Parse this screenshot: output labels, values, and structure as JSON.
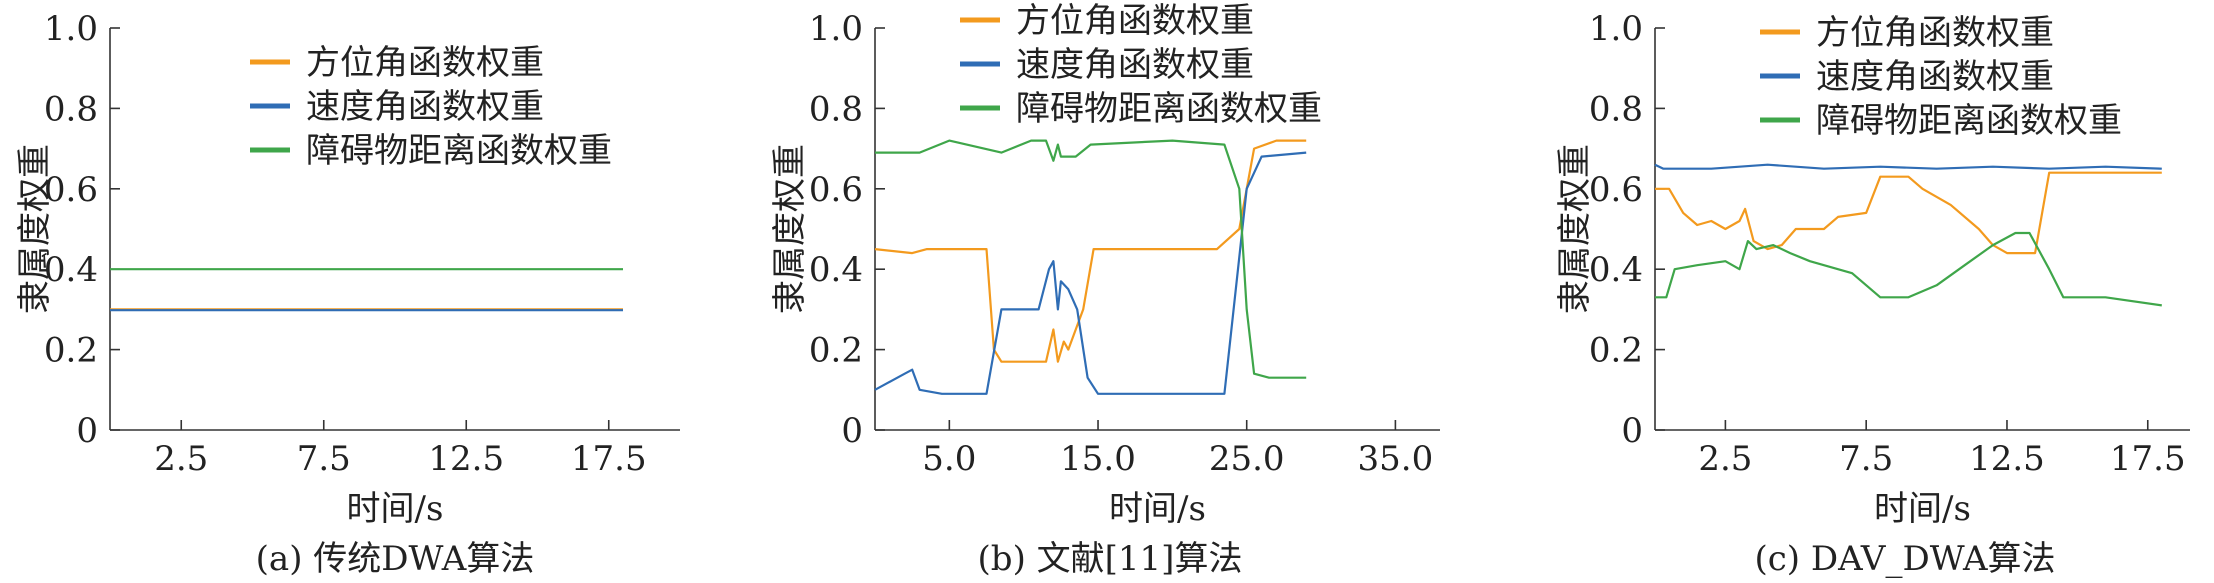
{
  "colors": {
    "orange": "#f39a1e",
    "blue": "#2f6db5",
    "green": "#3fa64a",
    "axis": "#333333"
  },
  "chart_data": [
    {
      "type": "line",
      "caption": "(a) 传统DWA算法",
      "xlabel": "时间/s",
      "ylabel": "隶属度权重",
      "xlim": [
        0,
        20
      ],
      "ylim": [
        0,
        1.0
      ],
      "xticks": [
        2.5,
        7.5,
        12.5,
        17.5
      ],
      "xtick_labels": [
        "2.5",
        "7.5",
        "12.5",
        "17.5"
      ],
      "yticks": [
        0,
        0.2,
        0.4,
        0.6,
        0.8,
        1.0
      ],
      "ytick_labels": [
        "0",
        "0.2",
        "0.4",
        "0.6",
        "0.8",
        "1.0"
      ],
      "legend_position": "top-center",
      "series": [
        {
          "name": "方位角函数权重",
          "color": "orange",
          "points": [
            [
              0,
              0.3
            ],
            [
              18,
              0.3
            ]
          ]
        },
        {
          "name": "速度角函数权重",
          "color": "blue",
          "points": [
            [
              0,
              0.298
            ],
            [
              18,
              0.298
            ]
          ]
        },
        {
          "name": "障碍物距离函数权重",
          "color": "green",
          "points": [
            [
              0,
              0.4
            ],
            [
              18,
              0.4
            ]
          ]
        }
      ]
    },
    {
      "type": "line",
      "caption": "(b) 文献[11]算法",
      "xlabel": "时间/s",
      "ylabel": "隶属度权重",
      "xlim": [
        0,
        38
      ],
      "ylim": [
        0,
        1.0
      ],
      "xticks": [
        5,
        15,
        25,
        35
      ],
      "xtick_labels": [
        "5.0",
        "15.0",
        "25.0",
        "35.0"
      ],
      "yticks": [
        0,
        0.2,
        0.4,
        0.6,
        0.8,
        1.0
      ],
      "ytick_labels": [
        "0",
        "0.2",
        "0.4",
        "0.6",
        "0.8",
        "1.0"
      ],
      "legend_position": "top-center",
      "series": [
        {
          "name": "方位角函数权重",
          "color": "orange",
          "points": [
            [
              0,
              0.45
            ],
            [
              2.5,
              0.44
            ],
            [
              3.5,
              0.45
            ],
            [
              7.5,
              0.45
            ],
            [
              8.0,
              0.2
            ],
            [
              8.5,
              0.17
            ],
            [
              11.5,
              0.17
            ],
            [
              12.0,
              0.25
            ],
            [
              12.3,
              0.17
            ],
            [
              12.7,
              0.22
            ],
            [
              13,
              0.2
            ],
            [
              14,
              0.3
            ],
            [
              14.7,
              0.45
            ],
            [
              23,
              0.45
            ],
            [
              24.5,
              0.5
            ],
            [
              25.5,
              0.7
            ],
            [
              27,
              0.72
            ],
            [
              29,
              0.72
            ]
          ]
        },
        {
          "name": "速度角函数权重",
          "color": "blue",
          "points": [
            [
              0,
              0.1
            ],
            [
              2,
              0.14
            ],
            [
              2.5,
              0.15
            ],
            [
              3,
              0.1
            ],
            [
              4.5,
              0.09
            ],
            [
              7.5,
              0.09
            ],
            [
              8.5,
              0.3
            ],
            [
              11,
              0.3
            ],
            [
              11.7,
              0.4
            ],
            [
              12,
              0.42
            ],
            [
              12.3,
              0.3
            ],
            [
              12.5,
              0.37
            ],
            [
              13,
              0.35
            ],
            [
              13.6,
              0.3
            ],
            [
              14.3,
              0.13
            ],
            [
              15,
              0.09
            ],
            [
              23.5,
              0.09
            ],
            [
              24.5,
              0.43
            ],
            [
              25,
              0.6
            ],
            [
              26,
              0.68
            ],
            [
              29,
              0.69
            ]
          ]
        },
        {
          "name": "障碍物距离函数权重",
          "color": "green",
          "points": [
            [
              0,
              0.69
            ],
            [
              3,
              0.69
            ],
            [
              5,
              0.72
            ],
            [
              8.5,
              0.69
            ],
            [
              10.5,
              0.72
            ],
            [
              11.5,
              0.72
            ],
            [
              12,
              0.67
            ],
            [
              12.3,
              0.71
            ],
            [
              12.5,
              0.68
            ],
            [
              13.5,
              0.68
            ],
            [
              14.5,
              0.71
            ],
            [
              20,
              0.72
            ],
            [
              23.5,
              0.71
            ],
            [
              24.5,
              0.6
            ],
            [
              25,
              0.3
            ],
            [
              25.5,
              0.14
            ],
            [
              26.5,
              0.13
            ],
            [
              29,
              0.13
            ]
          ]
        }
      ]
    },
    {
      "type": "line",
      "caption": "(c) DAV_DWA算法",
      "xlabel": "时间/s",
      "ylabel": "隶属度权重",
      "xlim": [
        0,
        19
      ],
      "ylim": [
        0,
        1.0
      ],
      "xticks": [
        2.5,
        7.5,
        12.5,
        17.5
      ],
      "xtick_labels": [
        "2.5",
        "7.5",
        "12.5",
        "17.5"
      ],
      "yticks": [
        0,
        0.2,
        0.4,
        0.6,
        0.8,
        1.0
      ],
      "ytick_labels": [
        "0",
        "0.2",
        "0.4",
        "0.6",
        "0.8",
        "1.0"
      ],
      "legend_position": "top-center",
      "series": [
        {
          "name": "方位角函数权重",
          "color": "orange",
          "points": [
            [
              0,
              0.6
            ],
            [
              0.5,
              0.6
            ],
            [
              1,
              0.54
            ],
            [
              1.5,
              0.51
            ],
            [
              2,
              0.52
            ],
            [
              2.5,
              0.5
            ],
            [
              3.0,
              0.52
            ],
            [
              3.2,
              0.55
            ],
            [
              3.5,
              0.47
            ],
            [
              4,
              0.45
            ],
            [
              4.5,
              0.46
            ],
            [
              5,
              0.5
            ],
            [
              6,
              0.5
            ],
            [
              6.5,
              0.53
            ],
            [
              7.5,
              0.54
            ],
            [
              8,
              0.63
            ],
            [
              9,
              0.63
            ],
            [
              9.5,
              0.6
            ],
            [
              10.5,
              0.56
            ],
            [
              11.5,
              0.5
            ],
            [
              12,
              0.46
            ],
            [
              12.5,
              0.44
            ],
            [
              13.5,
              0.44
            ],
            [
              14,
              0.64
            ],
            [
              18,
              0.64
            ]
          ]
        },
        {
          "name": "速度角函数权重",
          "color": "blue",
          "points": [
            [
              0,
              0.66
            ],
            [
              0.3,
              0.65
            ],
            [
              2,
              0.65
            ],
            [
              4,
              0.66
            ],
            [
              6,
              0.65
            ],
            [
              8,
              0.655
            ],
            [
              10,
              0.65
            ],
            [
              12,
              0.655
            ],
            [
              14,
              0.65
            ],
            [
              16,
              0.655
            ],
            [
              18,
              0.65
            ]
          ]
        },
        {
          "name": "障碍物距离函数权重",
          "color": "green",
          "points": [
            [
              0,
              0.33
            ],
            [
              0.4,
              0.33
            ],
            [
              0.7,
              0.4
            ],
            [
              1.5,
              0.41
            ],
            [
              2.5,
              0.42
            ],
            [
              3,
              0.4
            ],
            [
              3.3,
              0.47
            ],
            [
              3.6,
              0.45
            ],
            [
              4.2,
              0.46
            ],
            [
              4.8,
              0.44
            ],
            [
              5.5,
              0.42
            ],
            [
              6.5,
              0.4
            ],
            [
              7,
              0.39
            ],
            [
              8,
              0.33
            ],
            [
              9,
              0.33
            ],
            [
              10,
              0.36
            ],
            [
              11,
              0.41
            ],
            [
              12,
              0.46
            ],
            [
              12.8,
              0.49
            ],
            [
              13.3,
              0.49
            ],
            [
              14,
              0.4
            ],
            [
              14.5,
              0.33
            ],
            [
              16,
              0.33
            ],
            [
              18,
              0.31
            ]
          ]
        }
      ]
    }
  ]
}
